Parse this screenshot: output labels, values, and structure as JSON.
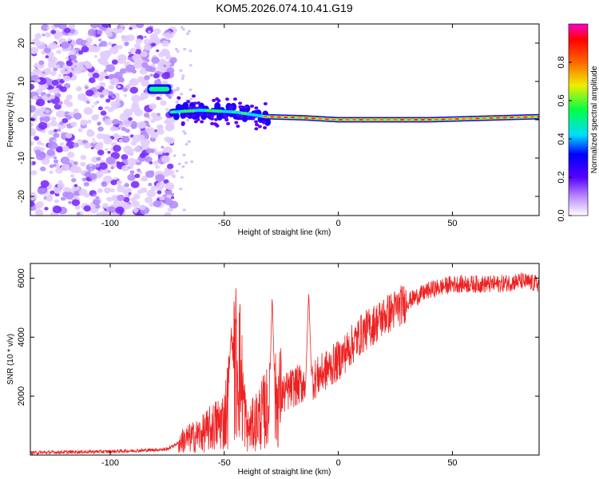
{
  "chart_data": [
    {
      "type": "heatmap",
      "title": "KOM5.2026.074.10.41.G19",
      "xlabel": "Height of straight line (km)",
      "ylabel": "Frequency (Hz)",
      "xlim": [
        -135,
        88
      ],
      "ylim": [
        -25,
        25
      ],
      "xticks": [
        -100,
        -50,
        0,
        50
      ],
      "yticks": [
        -20,
        -10,
        0,
        10,
        20
      ],
      "colorbar": {
        "label": "Normalized spectral amplitude",
        "range": [
          0,
          1
        ],
        "ticks": [
          "0.0",
          "0.2",
          "0.4",
          "0.6",
          "0.8"
        ]
      },
      "features": {
        "noise_region_x": [
          -135,
          -72
        ],
        "offset_segment": {
          "x": [
            -83,
            -74
          ],
          "freq": 8
        },
        "main_trace": {
          "points": [
            {
              "x": -73,
              "freq": 2
            },
            {
              "x": -60,
              "freq": 2.5
            },
            {
              "x": -45,
              "freq": 2
            },
            {
              "x": -32,
              "freq": 0.8
            },
            {
              "x": -15,
              "freq": 0.5
            },
            {
              "x": 0,
              "freq": 0
            },
            {
              "x": 40,
              "freq": 0
            },
            {
              "x": 88,
              "freq": 0.8
            }
          ]
        }
      }
    },
    {
      "type": "line",
      "xlabel": "Height of straight line (km)",
      "ylabel": "SNR (10 * v/v)",
      "xlim": [
        -135,
        88
      ],
      "ylim": [
        0,
        6500
      ],
      "xticks": [
        -100,
        -50,
        0,
        50
      ],
      "yticks": [
        2000,
        4000,
        6000
      ],
      "series": [
        {
          "name": "SNR",
          "color": "#ee2222",
          "x": [
            -135,
            -120,
            -100,
            -85,
            -75,
            -68,
            -60,
            -50,
            -44,
            -40,
            -30,
            -20,
            -10,
            0,
            10,
            20,
            30,
            40,
            50,
            60,
            70,
            80,
            88
          ],
          "values": [
            80,
            100,
            120,
            160,
            200,
            500,
            700,
            1200,
            3500,
            800,
            1700,
            2300,
            2600,
            3200,
            4100,
            4700,
            5200,
            5600,
            5800,
            5800,
            5800,
            5900,
            5800
          ],
          "spikes": [
            {
              "x": -47,
              "value": 4100
            },
            {
              "x": -29,
              "value": 5400
            },
            {
              "x": -13,
              "value": 5550
            }
          ]
        }
      ]
    }
  ]
}
